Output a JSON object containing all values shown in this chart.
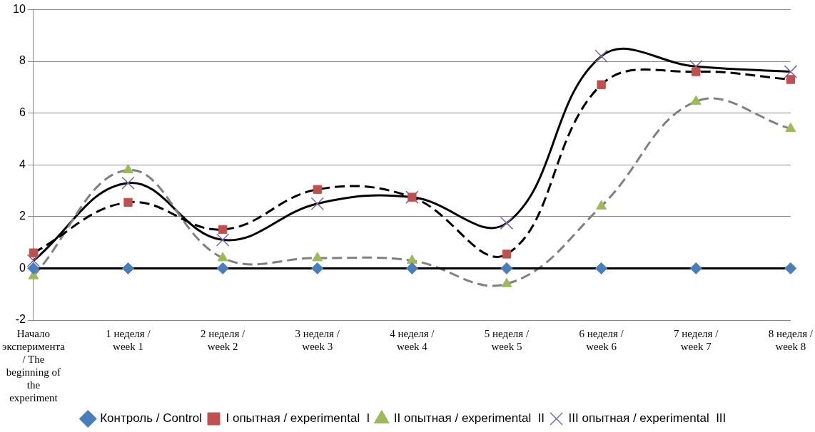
{
  "chart_data": {
    "type": "line",
    "categories": [
      "Начало эксперимента / The beginning of the experiment",
      "1 неделя / week 1",
      "2 неделя / week 2",
      "3 неделя / week 3",
      "4 неделя / week 4",
      "5 неделя / week 5",
      "6 неделя / week 6",
      "7 неделя / week 7",
      "8 неделя / week 8"
    ],
    "series": [
      {
        "name": "Контроль / Control",
        "color": "#4a7ebb",
        "marker": "diamond",
        "line_style": "solid",
        "values": [
          0,
          0,
          0,
          0,
          0,
          0,
          0,
          0,
          0
        ]
      },
      {
        "name": "I опытная / experimental  I",
        "color": "#c0504d",
        "marker": "square",
        "line_style": "dashed",
        "values": [
          0.6,
          2.55,
          1.5,
          3.05,
          2.75,
          0.55,
          7.1,
          7.6,
          7.3
        ]
      },
      {
        "name": "II опытная / experimental  II",
        "color": "#9bbb59",
        "marker": "triangle",
        "line_style": "dashed",
        "values": [
          -0.3,
          3.8,
          0.4,
          0.4,
          0.3,
          -0.6,
          2.4,
          6.45,
          5.4
        ]
      },
      {
        "name": "III опытная / experimental  III",
        "color": "#8064a2",
        "marker": "cross",
        "line_style": "solid",
        "values": [
          0.3,
          3.3,
          1.1,
          2.5,
          2.75,
          1.75,
          8.2,
          7.8,
          7.6
        ]
      }
    ],
    "ylim": [
      -2,
      10
    ],
    "yticks": [
      -2,
      0,
      2,
      4,
      6,
      8,
      10
    ],
    "grid": "y",
    "legend": "bottom"
  }
}
